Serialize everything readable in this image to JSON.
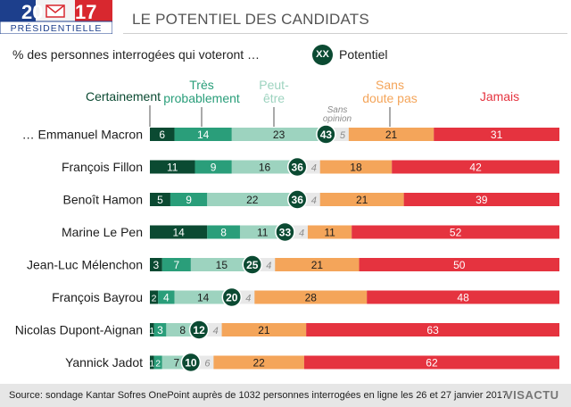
{
  "header": {
    "logo_year_left": "20",
    "logo_year_right": "17",
    "logo_caption": "PRÉSIDENTIELLE",
    "title": "LE POTENTIEL DES CANDIDATS",
    "subtitle": "% des personnes interrogées qui voteront …",
    "potential_legend_symbol": "XX",
    "potential_legend_label": "Potentiel"
  },
  "colors": {
    "certainement": "#0b4a32",
    "tres_probablement": "#2a9e7a",
    "peut_etre": "#9dd3bf",
    "sans_doute_pas": "#f4a55a",
    "jamais": "#e5333f",
    "potentiel": "#0b4a32",
    "sans_opinion_text": "#8c8c8c",
    "row_background": "#e8e8e8"
  },
  "chart_data": {
    "type": "bar",
    "orientation": "horizontal-stacked",
    "title": "LE POTENTIEL DES CANDIDATS",
    "unit": "%",
    "categories": [
      "… Emmanuel Macron",
      "François Fillon",
      "Benoît Hamon",
      "Marine Le Pen",
      "Jean-Luc Mélenchon",
      "François Bayrou",
      "Nicolas Dupont-Aignan",
      "Yannick Jadot"
    ],
    "series": [
      {
        "name": "Certainement",
        "values": [
          6,
          11,
          5,
          14,
          3,
          2,
          1,
          1
        ]
      },
      {
        "name": "Très probablement",
        "values": [
          14,
          9,
          9,
          8,
          7,
          4,
          3,
          2
        ]
      },
      {
        "name": "Peut-être",
        "values": [
          23,
          16,
          22,
          11,
          15,
          14,
          8,
          7
        ]
      },
      {
        "name": "Sans opinion",
        "values": [
          5,
          4,
          4,
          4,
          4,
          4,
          4,
          6
        ]
      },
      {
        "name": "Sans doute pas",
        "values": [
          21,
          18,
          21,
          11,
          21,
          28,
          21,
          22
        ]
      },
      {
        "name": "Jamais",
        "values": [
          31,
          42,
          39,
          52,
          50,
          48,
          63,
          62
        ]
      }
    ],
    "potentiel": [
      43,
      36,
      36,
      33,
      25,
      20,
      12,
      10
    ],
    "legend_labels": {
      "certainement": "Certainement",
      "tres_probablement_1": "Très",
      "tres_probablement_2": "probablement",
      "peut_etre_1": "Peut-",
      "peut_etre_2": "être",
      "sans_opinion_1": "Sans",
      "sans_opinion_2": "opinion",
      "sans_doute_pas_1": "Sans",
      "sans_doute_pas_2": "doute pas",
      "jamais": "Jamais"
    }
  },
  "footer": {
    "source": "Source: sondage Kantar Sofres OnePoint auprès de 1032 personnes interrogées en ligne les 26 et 27 janvier 2017.",
    "brand": "VISACTU"
  }
}
